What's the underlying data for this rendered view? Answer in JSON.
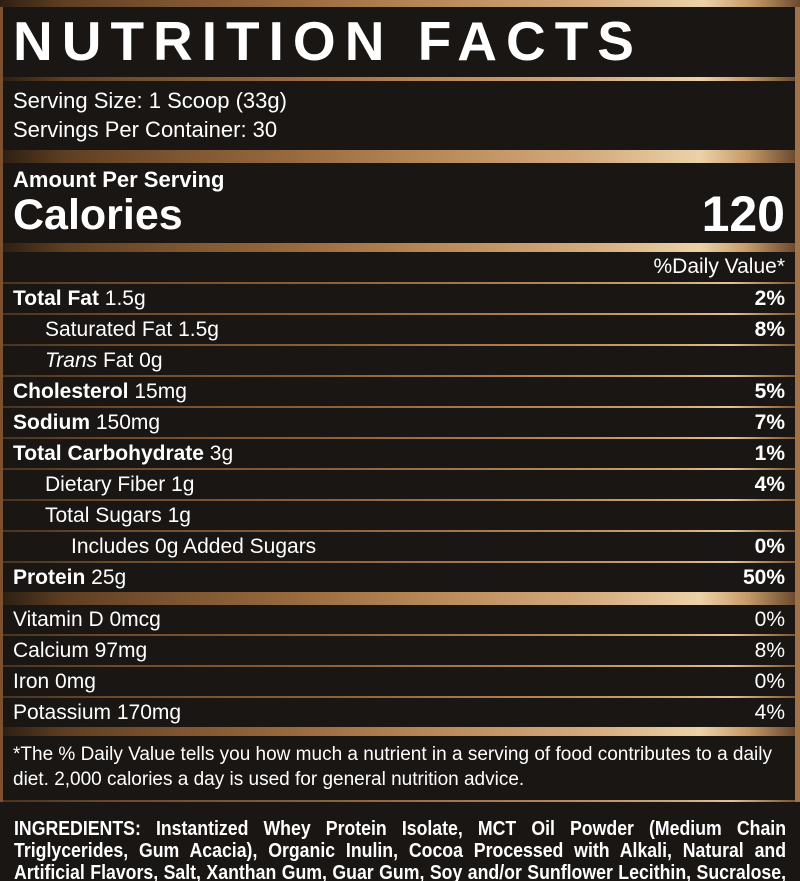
{
  "title": "NUTRITION FACTS",
  "serving": {
    "size": "Serving Size: 1 Scoop (33g)",
    "per_container": "Servings Per Container: 30"
  },
  "calories": {
    "label": "Amount Per Serving",
    "name": "Calories",
    "value": "120"
  },
  "daily_value_header": "%Daily Value*",
  "nutrients": [
    {
      "bold": "Total Fat",
      "italic": "",
      "rest": " 1.5g",
      "dv": "2%"
    },
    {
      "bold": "",
      "italic": "",
      "rest": "Saturated Fat 1.5g",
      "dv": "8%"
    },
    {
      "bold": "",
      "italic": "Trans",
      "rest": " Fat 0g",
      "dv": ""
    },
    {
      "bold": "Cholesterol",
      "italic": "",
      "rest": " 15mg",
      "dv": "5%"
    },
    {
      "bold": "Sodium",
      "italic": "",
      "rest": " 150mg",
      "dv": "7%"
    },
    {
      "bold": "Total Carbohydrate",
      "italic": "",
      "rest": " 3g",
      "dv": "1%"
    },
    {
      "bold": "",
      "italic": "",
      "rest": "Dietary Fiber 1g",
      "dv": "4%"
    },
    {
      "bold": "",
      "italic": "",
      "rest": "Total Sugars 1g",
      "dv": ""
    },
    {
      "bold": "",
      "italic": "",
      "rest": "Includes 0g Added Sugars",
      "dv": "0%"
    },
    {
      "bold": "Protein",
      "italic": "",
      "rest": " 25g",
      "dv": "50%"
    }
  ],
  "vitamins": [
    {
      "rest": "Vitamin D 0mcg",
      "dv": "0%"
    },
    {
      "rest": "Calcium 97mg",
      "dv": "8%"
    },
    {
      "rest": "Iron 0mg",
      "dv": "0%"
    },
    {
      "rest": "Potassium 170mg",
      "dv": "4%"
    }
  ],
  "footnote": "*The % Daily Value tells you how much a nutrient in a serving of food contributes to a daily diet. 2,000 calories a day is used for general nutrition advice.",
  "ingredients": {
    "label": "INGREDIENTS:",
    "text": " Instantized Whey Protein Isolate, MCT Oil Powder (Medium Chain Triglycerides, Gum Acacia), Organic Inulin, Cocoa Processed with Alkali, Natural and Artificial Flavors, Salt, Xanthan Gum, Guar Gum, Soy and/or Sunflower Lecithin, Sucralose, Acesulfame Potassium."
  },
  "colors": {
    "background": "#191614",
    "text": "#ffffff",
    "copper_dark": "#5f3f22",
    "copper_mid": "#a0724a",
    "copper_light": "#ecd2a9"
  }
}
